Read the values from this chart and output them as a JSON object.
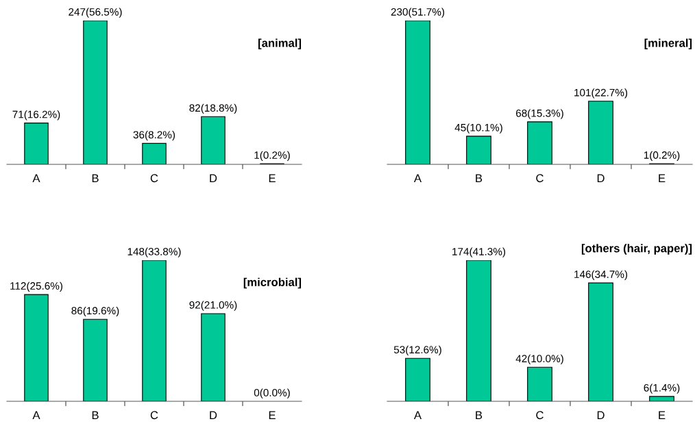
{
  "chart_data": [
    {
      "type": "bar",
      "title": "[animal]",
      "categories": [
        "A",
        "B",
        "C",
        "D",
        "E"
      ],
      "values": [
        71,
        247,
        36,
        82,
        1
      ],
      "value_labels": [
        "71(16.2%)",
        "247(56.5%)",
        "36(8.2%)",
        "82(18.8%)",
        "1(0.2%)"
      ],
      "color": "#00c896",
      "tick_labels": "x",
      "grid": false,
      "legend": false
    },
    {
      "type": "bar",
      "title": "[mineral]",
      "categories": [
        "A",
        "B",
        "C",
        "D",
        "E"
      ],
      "values": [
        230,
        45,
        68,
        101,
        1
      ],
      "value_labels": [
        "230(51.7%)",
        "45(10.1%)",
        "68(15.3%)",
        "101(22.7%)",
        "1(0.2%)"
      ],
      "color": "#00c896",
      "tick_labels": "x",
      "grid": false,
      "legend": false
    },
    {
      "type": "bar",
      "title": "[microbial]",
      "categories": [
        "A",
        "B",
        "C",
        "D",
        "E"
      ],
      "values": [
        112,
        86,
        148,
        92,
        0
      ],
      "value_labels": [
        "112(25.6%)",
        "86(19.6%)",
        "148(33.8%)",
        "92(21.0%)",
        "0(0.0%)"
      ],
      "color": "#00c896",
      "tick_labels": "x",
      "grid": false,
      "legend": false
    },
    {
      "type": "bar",
      "title": "[others (hair, paper)]",
      "categories": [
        "A",
        "B",
        "C",
        "D",
        "E"
      ],
      "values": [
        53,
        174,
        42,
        146,
        6
      ],
      "value_labels": [
        "53(12.6%)",
        "174(41.3%)",
        "42(10.0%)",
        "146(34.7%)",
        "6(1.4%)"
      ],
      "color": "#00c896",
      "tick_labels": "x",
      "grid": false,
      "legend": false
    }
  ]
}
